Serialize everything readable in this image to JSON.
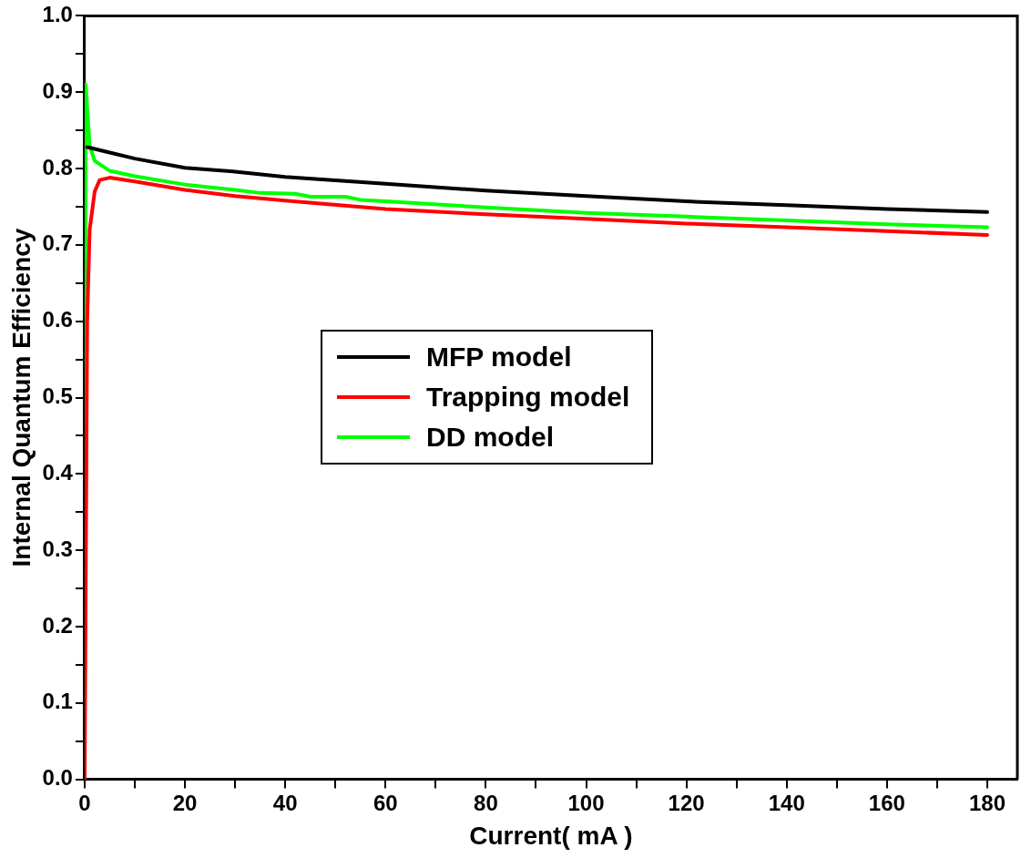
{
  "chart_data": {
    "type": "line",
    "xlabel": "Current( mA )",
    "ylabel": "Internal Quantum Efficiency",
    "xlim": [
      0,
      186
    ],
    "ylim": [
      0,
      1
    ],
    "xticks": [
      0,
      {
        "value": 10,
        "label": null
      },
      20,
      {
        "value": 30,
        "label": null
      },
      40,
      {
        "value": 50,
        "label": null
      },
      60,
      {
        "value": 70,
        "label": null
      },
      80,
      {
        "value": 90,
        "label": null
      },
      100,
      {
        "value": 110,
        "label": null
      },
      120,
      {
        "value": 130,
        "label": null
      },
      140,
      {
        "value": 150,
        "label": null
      },
      160,
      {
        "value": 170,
        "label": null
      },
      180
    ],
    "yticks": [
      {
        "value": 0,
        "label": "0.0"
      },
      {
        "value": 0.05,
        "label": null
      },
      0.1,
      {
        "value": 0.15,
        "label": null
      },
      0.2,
      {
        "value": 0.25,
        "label": null
      },
      0.3,
      {
        "value": 0.35,
        "label": null
      },
      0.4,
      {
        "value": 0.45,
        "label": null
      },
      0.5,
      {
        "value": 0.55,
        "label": null
      },
      0.6,
      {
        "value": 0.65,
        "label": null
      },
      0.7,
      {
        "value": 0.75,
        "label": null
      },
      0.8,
      {
        "value": 0.85,
        "label": null
      },
      0.9,
      {
        "value": 0.95,
        "label": null
      },
      {
        "value": 1,
        "label": "1.0"
      }
    ],
    "legend": "center",
    "grid": false,
    "marker": "none",
    "line_style": "solid",
    "series": [
      {
        "name": "MFP model",
        "color": "#000000",
        "x": [
          0.5,
          5,
          10,
          20,
          30,
          40,
          60,
          80,
          100,
          120,
          140,
          160,
          180
        ],
        "values": [
          0.828,
          0.821,
          0.813,
          0.801,
          0.796,
          0.789,
          0.78,
          0.771,
          0.764,
          0.757,
          0.752,
          0.747,
          0.743
        ]
      },
      {
        "name": "Trapping model",
        "color": "#ff0000",
        "x": [
          0,
          0.5,
          1,
          2,
          3,
          5,
          10,
          20,
          30,
          40,
          60,
          80,
          100,
          120,
          140,
          160,
          180
        ],
        "values": [
          0,
          0.6,
          0.72,
          0.77,
          0.785,
          0.788,
          0.783,
          0.772,
          0.764,
          0.758,
          0.747,
          0.74,
          0.734,
          0.728,
          0.723,
          0.718,
          0.713
        ]
      },
      {
        "name": "DD model",
        "color": "#00ff00",
        "x": [
          0,
          0.2,
          1,
          2,
          5,
          10,
          20,
          30,
          35,
          42,
          45,
          52,
          55,
          60,
          80,
          100,
          120,
          140,
          160,
          180
        ],
        "values": [
          0,
          0.91,
          0.83,
          0.81,
          0.797,
          0.79,
          0.779,
          0.772,
          0.768,
          0.767,
          0.763,
          0.763,
          0.759,
          0.757,
          0.749,
          0.742,
          0.737,
          0.732,
          0.727,
          0.723
        ]
      }
    ]
  }
}
